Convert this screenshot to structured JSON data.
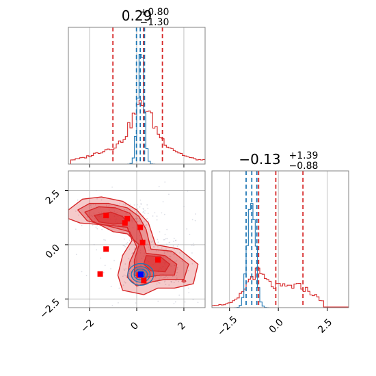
{
  "chart_data": {
    "type": "corner",
    "parameters": [
      {
        "title_value": "0.29",
        "title_plus": "+0.80",
        "title_minus": "−1.30",
        "axis_range": [
          -2.9,
          2.9
        ],
        "ticks": [
          -2,
          0,
          2
        ],
        "tick_labels": [
          "−2",
          "0",
          "2"
        ],
        "red_quantiles": [
          -1.01,
          0.29,
          1.09
        ],
        "blue_quantiles": [
          -0.01,
          0.15,
          0.33
        ]
      },
      {
        "title_value": "−0.13",
        "title_plus": "+1.39",
        "title_minus": "−0.88",
        "axis_range": [
          -3.4,
          3.6
        ],
        "ticks": [
          -2.5,
          0.0,
          2.5
        ],
        "tick_labels": [
          "−2.5",
          "0.0",
          "2.5"
        ],
        "red_quantiles": [
          -1.01,
          -0.13,
          1.26
        ],
        "blue_quantiles": [
          -1.65,
          -1.36,
          -1.1
        ]
      }
    ],
    "joint_y_range": [
      -2.9,
      3.4
    ],
    "joint_y_ticks": [
      -2.5,
      0.0,
      2.5
    ],
    "joint_y_tick_labels": [
      "−2.5",
      "0.0",
      "2.5"
    ],
    "red_modes": [
      [
        -1.3,
        1.35
      ],
      [
        -0.4,
        1.2
      ],
      [
        -0.5,
        1.0
      ],
      [
        0.15,
        0.8
      ],
      [
        0.25,
        0.1
      ],
      [
        0.9,
        -0.7
      ],
      [
        -1.3,
        -0.2
      ],
      [
        -1.55,
        -1.35
      ],
      [
        0.3,
        -1.65
      ],
      [
        0.1,
        -1.4
      ]
    ],
    "blue_mode": [
      0.17,
      -1.37
    ],
    "grid": true,
    "colors": {
      "red": "#d62728",
      "blue": "#1f77b4",
      "red_marker": "#ff0000",
      "blue_marker": "#0000ff",
      "grid": "#b0b0b0",
      "frame": "#808080"
    }
  }
}
